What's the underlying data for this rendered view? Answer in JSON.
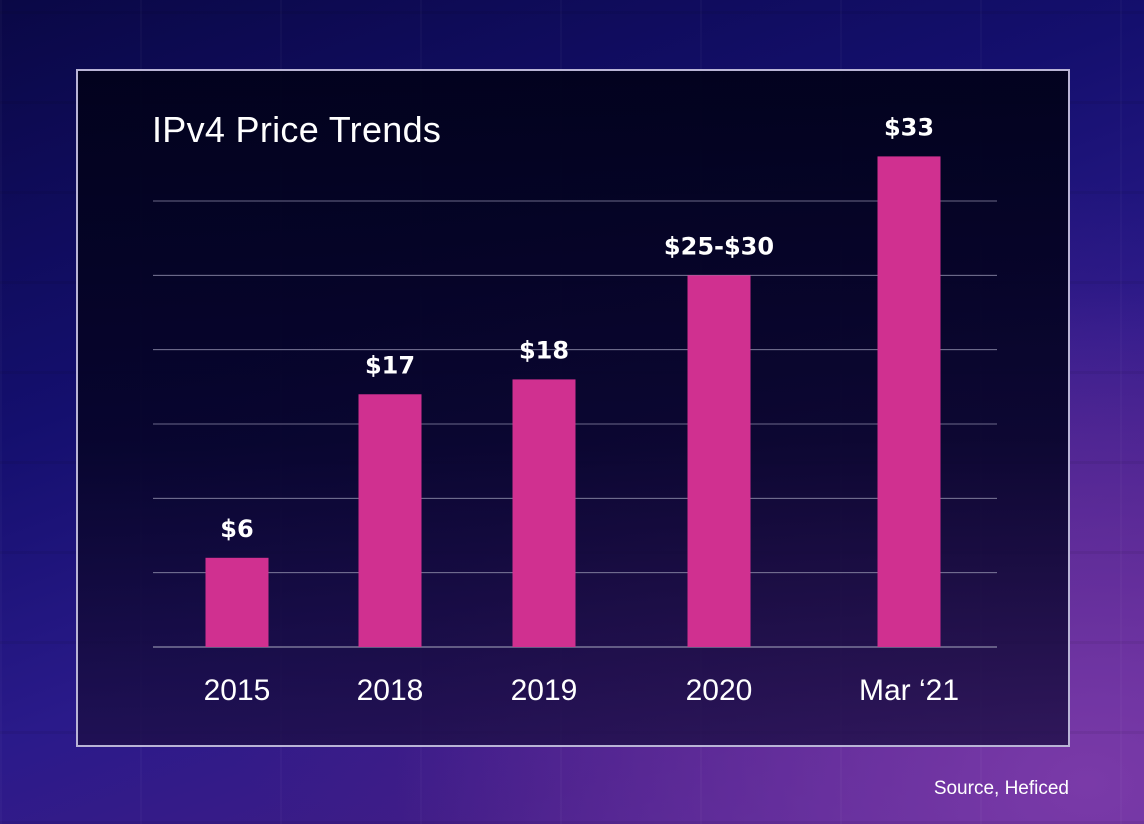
{
  "chart_data": {
    "type": "bar",
    "title": "IPv4 Price Trends",
    "categories": [
      "2015",
      "2018",
      "2019",
      "2020",
      "Mar ‘21"
    ],
    "values": [
      6,
      17,
      18,
      25,
      33
    ],
    "data_labels": [
      "$6",
      "$17",
      "$18",
      "$25-$30",
      "$33"
    ],
    "xlabel": "",
    "ylabel": "",
    "ylim": [
      0,
      30
    ],
    "grid": true,
    "bar_color": "#d03090",
    "gridline_color": "#8c8aa8",
    "source": "Source, Heficed"
  }
}
